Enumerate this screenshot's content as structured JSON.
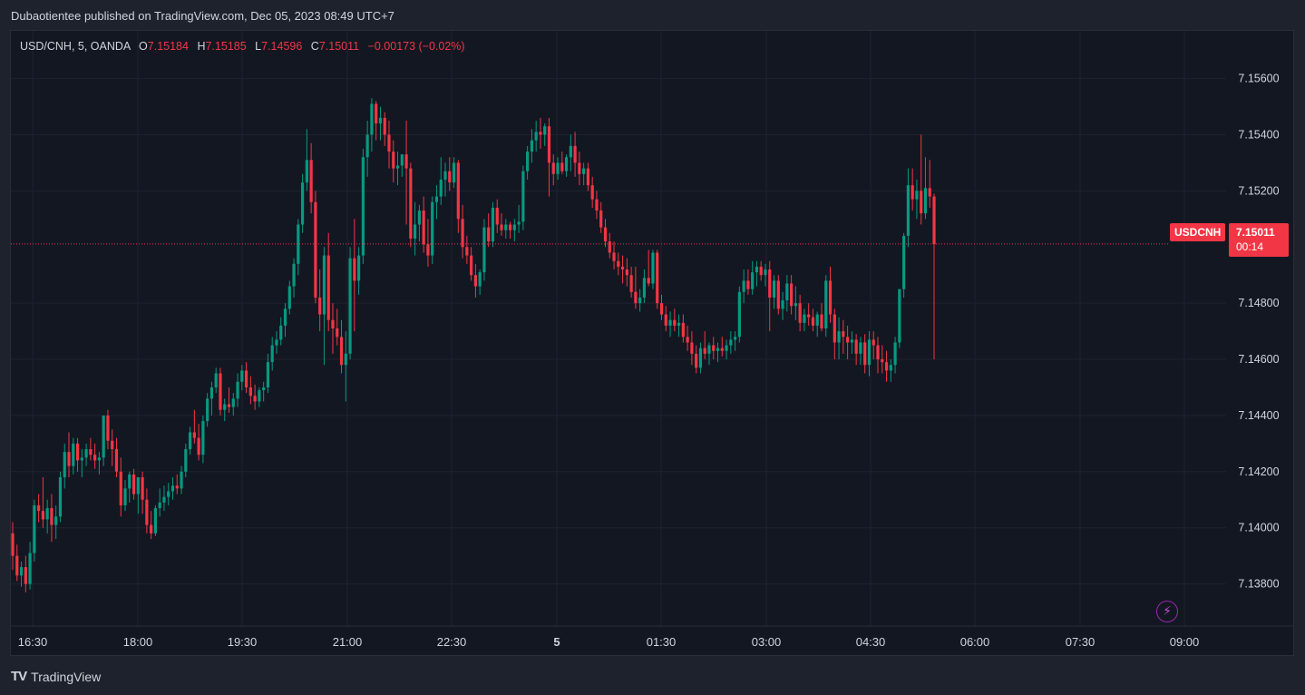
{
  "header": {
    "published": "Dubaotientee published on TradingView.com, Dec 05, 2023 08:49 UTC+7"
  },
  "legend": {
    "symbol": "USD/CNH, 5, OANDA",
    "o_label": "O",
    "o": "7.15184",
    "h_label": "H",
    "h": "7.15185",
    "l_label": "L",
    "l": "7.14596",
    "c_label": "C",
    "c": "7.15011",
    "change": "−0.00173 (−0.02%)"
  },
  "price_tag": {
    "symbol": "USDCNH",
    "price": "7.15011",
    "countdown": "00:14"
  },
  "brand": {
    "name": "TradingView",
    "logo": "TV"
  },
  "icons": {
    "flash": "flash-icon"
  },
  "colors": {
    "up": "#089981",
    "down": "#f23645",
    "grid": "#1f2330",
    "text": "#d1d4dc",
    "accent": "#9c27b0"
  },
  "chart_data": {
    "type": "candlestick",
    "symbol": "USD/CNH",
    "interval": "5",
    "y_ticks": [
      "7.15600",
      "7.15400",
      "7.15200",
      "7.14800",
      "7.14600",
      "7.14400",
      "7.14200",
      "7.14000",
      "7.13800"
    ],
    "x_ticks": [
      "16:30",
      "18:00",
      "19:30",
      "21:00",
      "22:30",
      "5",
      "01:30",
      "03:00",
      "04:30",
      "06:00",
      "07:30",
      "09:00"
    ],
    "ylim": [
      7.1365,
      7.1577
    ],
    "last_price": 7.15011,
    "grid": true,
    "candles": [
      [
        7.1398,
        7.1402,
        7.1385,
        7.139
      ],
      [
        7.139,
        7.1394,
        7.1381,
        7.1383
      ],
      [
        7.1383,
        7.1388,
        7.1379,
        7.1386
      ],
      [
        7.1386,
        7.139,
        7.1377,
        7.138
      ],
      [
        7.138,
        7.1395,
        7.1378,
        7.1391
      ],
      [
        7.1391,
        7.141,
        7.1388,
        7.1408
      ],
      [
        7.1408,
        7.1412,
        7.1402,
        7.1406
      ],
      [
        7.1406,
        7.1418,
        7.14,
        7.1403
      ],
      [
        7.1403,
        7.141,
        7.1398,
        7.1407
      ],
      [
        7.1407,
        7.1412,
        7.1395,
        7.1401
      ],
      [
        7.1401,
        7.1408,
        7.1396,
        7.1404
      ],
      [
        7.1404,
        7.142,
        7.1402,
        7.1418
      ],
      [
        7.1418,
        7.143,
        7.1414,
        7.1427
      ],
      [
        7.1427,
        7.1434,
        7.1418,
        7.1422
      ],
      [
        7.1422,
        7.1432,
        7.1419,
        7.143
      ],
      [
        7.143,
        7.1432,
        7.142,
        7.1424
      ],
      [
        7.1424,
        7.1428,
        7.1418,
        7.1425
      ],
      [
        7.1425,
        7.143,
        7.1422,
        7.1428
      ],
      [
        7.1428,
        7.1432,
        7.1424,
        7.1426
      ],
      [
        7.1426,
        7.143,
        7.1421,
        7.1424
      ],
      [
        7.1424,
        7.1427,
        7.1419,
        7.1425
      ],
      [
        7.1425,
        7.144,
        7.1422,
        7.144
      ],
      [
        7.144,
        7.1442,
        7.1428,
        7.1431
      ],
      [
        7.1431,
        7.1435,
        7.1422,
        7.1428
      ],
      [
        7.1428,
        7.1432,
        7.1418,
        7.142
      ],
      [
        7.142,
        7.1425,
        7.1404,
        7.1408
      ],
      [
        7.1408,
        7.1417,
        7.1406,
        7.1414
      ],
      [
        7.1414,
        7.142,
        7.1409,
        7.1419
      ],
      [
        7.1419,
        7.1421,
        7.141,
        7.1412
      ],
      [
        7.1412,
        7.1416,
        7.1405,
        7.1418
      ],
      [
        7.1418,
        7.142,
        7.1405,
        7.141
      ],
      [
        7.141,
        7.1414,
        7.1398,
        7.1401
      ],
      [
        7.1401,
        7.1406,
        7.1396,
        7.1398
      ],
      [
        7.1398,
        7.1408,
        7.1397,
        7.1407
      ],
      [
        7.1407,
        7.1414,
        7.1404,
        7.1409
      ],
      [
        7.1409,
        7.1415,
        7.1406,
        7.1411
      ],
      [
        7.1411,
        7.1416,
        7.1408,
        7.1413
      ],
      [
        7.1413,
        7.1418,
        7.141,
        7.1415
      ],
      [
        7.1415,
        7.1419,
        7.1412,
        7.1414
      ],
      [
        7.1414,
        7.1422,
        7.1412,
        7.142
      ],
      [
        7.142,
        7.143,
        7.1418,
        7.1428
      ],
      [
        7.1428,
        7.1436,
        7.1426,
        7.1434
      ],
      [
        7.1434,
        7.1442,
        7.143,
        7.1432
      ],
      [
        7.1432,
        7.1437,
        7.1424,
        7.1426
      ],
      [
        7.1426,
        7.144,
        7.1423,
        7.1438
      ],
      [
        7.1438,
        7.1448,
        7.1436,
        7.1446
      ],
      [
        7.1446,
        7.1452,
        7.144,
        7.145
      ],
      [
        7.145,
        7.1457,
        7.1448,
        7.1455
      ],
      [
        7.1455,
        7.1457,
        7.144,
        7.1442
      ],
      [
        7.1442,
        7.1446,
        7.1438,
        7.1444
      ],
      [
        7.1444,
        7.145,
        7.1441,
        7.1443
      ],
      [
        7.1443,
        7.1448,
        7.144,
        7.1446
      ],
      [
        7.1446,
        7.1455,
        7.1443,
        7.1452
      ],
      [
        7.1452,
        7.1458,
        7.1449,
        7.1456
      ],
      [
        7.1456,
        7.1459,
        7.1448,
        7.145
      ],
      [
        7.145,
        7.1454,
        7.1444,
        7.1447
      ],
      [
        7.1447,
        7.1451,
        7.1442,
        7.1445
      ],
      [
        7.1445,
        7.145,
        7.1443,
        7.1449
      ],
      [
        7.1449,
        7.1452,
        7.1445,
        7.145
      ],
      [
        7.145,
        7.1462,
        7.1448,
        7.1459
      ],
      [
        7.1459,
        7.1468,
        7.1456,
        7.1465
      ],
      [
        7.1465,
        7.147,
        7.1462,
        7.1467
      ],
      [
        7.1467,
        7.1475,
        7.1465,
        7.1472
      ],
      [
        7.1472,
        7.148,
        7.1468,
        7.1478
      ],
      [
        7.1478,
        7.1488,
        7.1476,
        7.1486
      ],
      [
        7.1486,
        7.1496,
        7.1482,
        7.1494
      ],
      [
        7.1494,
        7.151,
        7.149,
        7.1508
      ],
      [
        7.1508,
        7.1526,
        7.1505,
        7.1523
      ],
      [
        7.1523,
        7.1542,
        7.152,
        7.1531
      ],
      [
        7.1531,
        7.1537,
        7.1512,
        7.1516
      ],
      [
        7.1516,
        7.152,
        7.148,
        7.1482
      ],
      [
        7.1482,
        7.1492,
        7.147,
        7.1476
      ],
      [
        7.1476,
        7.15,
        7.1458,
        7.1497
      ],
      [
        7.1497,
        7.1505,
        7.147,
        7.1474
      ],
      [
        7.1474,
        7.148,
        7.1462,
        7.1471
      ],
      [
        7.1471,
        7.1478,
        7.1465,
        7.1468
      ],
      [
        7.1468,
        7.1474,
        7.1455,
        7.1458
      ],
      [
        7.1458,
        7.147,
        7.1445,
        7.1462
      ],
      [
        7.1462,
        7.15,
        7.146,
        7.1496
      ],
      [
        7.1496,
        7.151,
        7.147,
        7.1488
      ],
      [
        7.1488,
        7.15,
        7.1483,
        7.1497
      ],
      [
        7.1497,
        7.1535,
        7.1494,
        7.1532
      ],
      [
        7.1532,
        7.1545,
        7.1525,
        7.154
      ],
      [
        7.154,
        7.1553,
        7.1534,
        7.1551
      ],
      [
        7.1551,
        7.1552,
        7.1538,
        7.1544
      ],
      [
        7.1544,
        7.155,
        7.1538,
        7.1546
      ],
      [
        7.1546,
        7.1548,
        7.1536,
        7.154
      ],
      [
        7.154,
        7.1545,
        7.1528,
        7.1534
      ],
      [
        7.1534,
        7.1538,
        7.1523,
        7.1528
      ],
      [
        7.1528,
        7.1534,
        7.1522,
        7.1529
      ],
      [
        7.1529,
        7.1533,
        7.1525,
        7.1533
      ],
      [
        7.1533,
        7.1545,
        7.1508,
        7.1528
      ],
      [
        7.1528,
        7.153,
        7.15,
        7.1503
      ],
      [
        7.1503,
        7.1516,
        7.1497,
        7.1508
      ],
      [
        7.1508,
        7.1515,
        7.1502,
        7.1513
      ],
      [
        7.1513,
        7.1518,
        7.1498,
        7.1501
      ],
      [
        7.1501,
        7.151,
        7.1493,
        7.1497
      ],
      [
        7.1497,
        7.1518,
        7.1494,
        7.1516
      ],
      [
        7.1516,
        7.1522,
        7.151,
        7.1518
      ],
      [
        7.1518,
        7.1532,
        7.1515,
        7.1524
      ],
      [
        7.1524,
        7.153,
        7.1518,
        7.1527
      ],
      [
        7.1527,
        7.1532,
        7.152,
        7.1523
      ],
      [
        7.1523,
        7.1532,
        7.1521,
        7.153
      ],
      [
        7.153,
        7.1531,
        7.1505,
        7.151
      ],
      [
        7.151,
        7.1515,
        7.1496,
        7.15
      ],
      [
        7.15,
        7.1504,
        7.1494,
        7.1497
      ],
      [
        7.1497,
        7.15,
        7.1488,
        7.149
      ],
      [
        7.149,
        7.1494,
        7.1482,
        7.1486
      ],
      [
        7.1486,
        7.1492,
        7.1483,
        7.1491
      ],
      [
        7.1491,
        7.151,
        7.1488,
        7.1507
      ],
      [
        7.1507,
        7.1512,
        7.15,
        7.1502
      ],
      [
        7.1502,
        7.1516,
        7.15,
        7.1514
      ],
      [
        7.1514,
        7.1517,
        7.1505,
        7.1508
      ],
      [
        7.1508,
        7.1512,
        7.1504,
        7.1506
      ],
      [
        7.1506,
        7.151,
        7.1503,
        7.1508
      ],
      [
        7.1508,
        7.1509,
        7.1503,
        7.1506
      ],
      [
        7.1506,
        7.151,
        7.1502,
        7.1508
      ],
      [
        7.1508,
        7.1515,
        7.1505,
        7.1509
      ],
      [
        7.1509,
        7.1529,
        7.1506,
        7.1527
      ],
      [
        7.1527,
        7.1536,
        7.1524,
        7.1534
      ],
      [
        7.1534,
        7.1542,
        7.153,
        7.1538
      ],
      [
        7.1538,
        7.1545,
        7.1534,
        7.1541
      ],
      [
        7.1541,
        7.1546,
        7.1535,
        7.154
      ],
      [
        7.154,
        7.1544,
        7.1536,
        7.1543
      ],
      [
        7.1543,
        7.1546,
        7.1518,
        7.153
      ],
      [
        7.153,
        7.1533,
        7.1522,
        7.1526
      ],
      [
        7.1526,
        7.1532,
        7.1524,
        7.153
      ],
      [
        7.153,
        7.1534,
        7.1526,
        7.1527
      ],
      [
        7.1527,
        7.1533,
        7.1525,
        7.1532
      ],
      [
        7.1532,
        7.154,
        7.1527,
        7.1536
      ],
      [
        7.1536,
        7.1541,
        7.1525,
        7.153
      ],
      [
        7.153,
        7.1534,
        7.1522,
        7.1526
      ],
      [
        7.1526,
        7.153,
        7.1522,
        7.1528
      ],
      [
        7.1528,
        7.153,
        7.152,
        7.1522
      ],
      [
        7.1522,
        7.1525,
        7.1514,
        7.1517
      ],
      [
        7.1517,
        7.152,
        7.151,
        7.1513
      ],
      [
        7.1513,
        7.1516,
        7.1505,
        7.1507
      ],
      [
        7.1507,
        7.151,
        7.15,
        7.1502
      ],
      [
        7.1502,
        7.1505,
        7.1496,
        7.1498
      ],
      [
        7.1498,
        7.1502,
        7.1492,
        7.1495
      ],
      [
        7.1495,
        7.1498,
        7.149,
        7.1493
      ],
      [
        7.1493,
        7.1497,
        7.1487,
        7.1492
      ],
      [
        7.1492,
        7.1496,
        7.1486,
        7.149
      ],
      [
        7.149,
        7.1493,
        7.1482,
        7.1484
      ],
      [
        7.1484,
        7.1493,
        7.1478,
        7.148
      ],
      [
        7.148,
        7.1485,
        7.1477,
        7.1482
      ],
      [
        7.1482,
        7.1492,
        7.148,
        7.1489
      ],
      [
        7.1489,
        7.1499,
        7.1486,
        7.1487
      ],
      [
        7.1487,
        7.1499,
        7.1485,
        7.1498
      ],
      [
        7.1498,
        7.1499,
        7.1478,
        7.148
      ],
      [
        7.148,
        7.1483,
        7.1474,
        7.1476
      ],
      [
        7.1476,
        7.1479,
        7.147,
        7.1472
      ],
      [
        7.1472,
        7.1477,
        7.1468,
        7.1474
      ],
      [
        7.1474,
        7.1478,
        7.147,
        7.1472
      ],
      [
        7.1472,
        7.1476,
        7.1468,
        7.1473
      ],
      [
        7.1473,
        7.1476,
        7.1466,
        7.1468
      ],
      [
        7.1468,
        7.1472,
        7.1463,
        7.1466
      ],
      [
        7.1466,
        7.147,
        7.1458,
        7.1462
      ],
      [
        7.1462,
        7.1465,
        7.1455,
        7.1457
      ],
      [
        7.1457,
        7.1466,
        7.1455,
        7.1464
      ],
      [
        7.1464,
        7.147,
        7.146,
        7.1462
      ],
      [
        7.1462,
        7.1466,
        7.1458,
        7.1465
      ],
      [
        7.1465,
        7.1468,
        7.146,
        7.1463
      ],
      [
        7.1463,
        7.1466,
        7.1459,
        7.1464
      ],
      [
        7.1464,
        7.1468,
        7.1461,
        7.1463
      ],
      [
        7.1463,
        7.1467,
        7.146,
        7.1465
      ],
      [
        7.1465,
        7.147,
        7.1462,
        7.1467
      ],
      [
        7.1467,
        7.147,
        7.1463,
        7.1468
      ],
      [
        7.1468,
        7.1486,
        7.1466,
        7.1484
      ],
      [
        7.1484,
        7.1492,
        7.148,
        7.1488
      ],
      [
        7.1488,
        7.1492,
        7.1483,
        7.1485
      ],
      [
        7.1485,
        7.1495,
        7.1483,
        7.1491
      ],
      [
        7.1491,
        7.1495,
        7.1486,
        7.1493
      ],
      [
        7.1493,
        7.1495,
        7.1488,
        7.149
      ],
      [
        7.149,
        7.1494,
        7.1486,
        7.1492
      ],
      [
        7.1492,
        7.1495,
        7.147,
        7.1482
      ],
      [
        7.1482,
        7.149,
        7.1478,
        7.1488
      ],
      [
        7.1488,
        7.149,
        7.1476,
        7.1478
      ],
      [
        7.1478,
        7.1484,
        7.1474,
        7.1481
      ],
      [
        7.1481,
        7.149,
        7.1477,
        7.1487
      ],
      [
        7.1487,
        7.149,
        7.1476,
        7.1479
      ],
      [
        7.1479,
        7.1486,
        7.1474,
        7.148
      ],
      [
        7.148,
        7.1483,
        7.147,
        7.1473
      ],
      [
        7.1473,
        7.1478,
        7.147,
        7.1476
      ],
      [
        7.1476,
        7.148,
        7.1472,
        7.1475
      ],
      [
        7.1475,
        7.1478,
        7.147,
        7.1472
      ],
      [
        7.1472,
        7.1477,
        7.1468,
        7.1476
      ],
      [
        7.1476,
        7.148,
        7.147,
        7.1471
      ],
      [
        7.1471,
        7.149,
        7.1468,
        7.1488
      ],
      [
        7.1488,
        7.1493,
        7.1473,
        7.1476
      ],
      [
        7.1476,
        7.1478,
        7.146,
        7.1466
      ],
      [
        7.1466,
        7.1475,
        7.146,
        7.147
      ],
      [
        7.147,
        7.1474,
        7.1462,
        7.1468
      ],
      [
        7.1468,
        7.1472,
        7.146,
        7.1466
      ],
      [
        7.1466,
        7.147,
        7.1462,
        7.1467
      ],
      [
        7.1467,
        7.1469,
        7.1458,
        7.1462
      ],
      [
        7.1462,
        7.1468,
        7.1458,
        7.1466
      ],
      [
        7.1466,
        7.1469,
        7.1455,
        7.1458
      ],
      [
        7.1458,
        7.147,
        7.1454,
        7.1467
      ],
      [
        7.1467,
        7.147,
        7.146,
        7.1465
      ],
      [
        7.1465,
        7.1468,
        7.1455,
        7.146
      ],
      [
        7.146,
        7.1465,
        7.1455,
        7.1459
      ],
      [
        7.1459,
        7.1463,
        7.1452,
        7.1456
      ],
      [
        7.1456,
        7.146,
        7.1452,
        7.1458
      ],
      [
        7.1458,
        7.1468,
        7.1455,
        7.1466
      ],
      [
        7.1466,
        7.1485,
        7.1464,
        7.1485
      ],
      [
        7.1485,
        7.1505,
        7.1482,
        7.1504
      ],
      [
        7.1504,
        7.1528,
        7.15,
        7.1522
      ],
      [
        7.1522,
        7.1528,
        7.1513,
        7.1517
      ],
      [
        7.1517,
        7.1524,
        7.151,
        7.152
      ],
      [
        7.152,
        7.154,
        7.1508,
        7.1512
      ],
      [
        7.1512,
        7.1532,
        7.151,
        7.1521
      ],
      [
        7.1521,
        7.1531,
        7.1514,
        7.1518
      ],
      [
        7.1518,
        7.1519,
        7.146,
        7.1501
      ]
    ]
  }
}
